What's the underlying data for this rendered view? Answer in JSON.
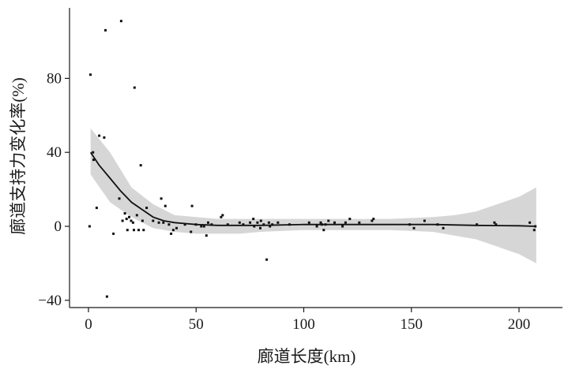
{
  "chart_data": {
    "type": "scatter",
    "xlabel": "廊道长度(km)",
    "ylabel": "廊道支持力变化率(%)",
    "xlim": [
      -8,
      212
    ],
    "ylim": [
      -45,
      120
    ],
    "x_ticks": [
      0,
      50,
      100,
      150,
      200
    ],
    "x_tick_labels": [
      "0",
      "50",
      "100",
      "150",
      "200"
    ],
    "y_ticks": [
      -40,
      0,
      40,
      80
    ],
    "y_tick_labels": [
      "−40",
      "0",
      "40",
      "80"
    ],
    "grid": false,
    "legend": "none",
    "points": [
      {
        "x": 0.5,
        "y": 0
      },
      {
        "x": 0.9,
        "y": 82
      },
      {
        "x": 2.1,
        "y": 40
      },
      {
        "x": 2.4,
        "y": 36
      },
      {
        "x": 3.8,
        "y": 10
      },
      {
        "x": 5,
        "y": 49
      },
      {
        "x": 7.3,
        "y": 48
      },
      {
        "x": 7.9,
        "y": 106
      },
      {
        "x": 8.6,
        "y": -38
      },
      {
        "x": 11.6,
        "y": -4
      },
      {
        "x": 14.3,
        "y": 15
      },
      {
        "x": 15.2,
        "y": 111
      },
      {
        "x": 15.8,
        "y": 3
      },
      {
        "x": 16.9,
        "y": 7
      },
      {
        "x": 17.7,
        "y": 4
      },
      {
        "x": 18.1,
        "y": -2
      },
      {
        "x": 18.9,
        "y": 5
      },
      {
        "x": 19.8,
        "y": 3
      },
      {
        "x": 20.7,
        "y": 2
      },
      {
        "x": 21.1,
        "y": -2
      },
      {
        "x": 21.4,
        "y": 75
      },
      {
        "x": 22.5,
        "y": 6
      },
      {
        "x": 23.3,
        "y": -2
      },
      {
        "x": 24.3,
        "y": 33
      },
      {
        "x": 25.1,
        "y": 3
      },
      {
        "x": 25.6,
        "y": -2
      },
      {
        "x": 27,
        "y": 10
      },
      {
        "x": 30,
        "y": 3
      },
      {
        "x": 32.7,
        "y": 2
      },
      {
        "x": 33.8,
        "y": 15
      },
      {
        "x": 34.8,
        "y": 2
      },
      {
        "x": 35.7,
        "y": 11
      },
      {
        "x": 37.4,
        "y": 1
      },
      {
        "x": 38.4,
        "y": -4
      },
      {
        "x": 39.4,
        "y": -2
      },
      {
        "x": 40.9,
        "y": -1
      },
      {
        "x": 44.8,
        "y": 1
      },
      {
        "x": 47.6,
        "y": -3
      },
      {
        "x": 48.1,
        "y": 11
      },
      {
        "x": 49.9,
        "y": 1
      },
      {
        "x": 52.4,
        "y": 0
      },
      {
        "x": 53.7,
        "y": 0
      },
      {
        "x": 54.8,
        "y": -5
      },
      {
        "x": 55.6,
        "y": 2
      },
      {
        "x": 57.2,
        "y": 1
      },
      {
        "x": 61.6,
        "y": 5
      },
      {
        "x": 62.3,
        "y": 6
      },
      {
        "x": 64.7,
        "y": 1
      },
      {
        "x": 70.2,
        "y": 2
      },
      {
        "x": 71.9,
        "y": 1
      },
      {
        "x": 75.1,
        "y": 2
      },
      {
        "x": 76.6,
        "y": 4
      },
      {
        "x": 77,
        "y": 0
      },
      {
        "x": 78.5,
        "y": 2
      },
      {
        "x": 79.8,
        "y": -1
      },
      {
        "x": 80.1,
        "y": 3
      },
      {
        "x": 81.4,
        "y": 1
      },
      {
        "x": 82.8,
        "y": -18
      },
      {
        "x": 83.8,
        "y": 2
      },
      {
        "x": 84.3,
        "y": 0
      },
      {
        "x": 85.4,
        "y": 1
      },
      {
        "x": 88,
        "y": 2
      },
      {
        "x": 93.4,
        "y": 1
      },
      {
        "x": 102.5,
        "y": 2
      },
      {
        "x": 106.1,
        "y": 0
      },
      {
        "x": 107.9,
        "y": 2
      },
      {
        "x": 108.4,
        "y": 1
      },
      {
        "x": 109.3,
        "y": -2
      },
      {
        "x": 110.1,
        "y": 1
      },
      {
        "x": 111.5,
        "y": 3
      },
      {
        "x": 114.3,
        "y": 2
      },
      {
        "x": 118,
        "y": 0
      },
      {
        "x": 119.4,
        "y": 2
      },
      {
        "x": 121.4,
        "y": 4
      },
      {
        "x": 125.8,
        "y": 2
      },
      {
        "x": 131.7,
        "y": 3
      },
      {
        "x": 132.4,
        "y": 4
      },
      {
        "x": 149.2,
        "y": 1
      },
      {
        "x": 151.2,
        "y": -1
      },
      {
        "x": 156.1,
        "y": 3
      },
      {
        "x": 162.2,
        "y": 1
      },
      {
        "x": 164.8,
        "y": -1
      },
      {
        "x": 180.4,
        "y": 1
      },
      {
        "x": 188.6,
        "y": 2
      },
      {
        "x": 189.3,
        "y": 1
      },
      {
        "x": 205,
        "y": 2
      },
      {
        "x": 207.1,
        "y": -2
      },
      {
        "x": 207.6,
        "y": 0
      }
    ],
    "trend_line": [
      {
        "x": 1,
        "y": 40
      },
      {
        "x": 5,
        "y": 33
      },
      {
        "x": 10,
        "y": 26
      },
      {
        "x": 15,
        "y": 19
      },
      {
        "x": 20,
        "y": 13
      },
      {
        "x": 25,
        "y": 9
      },
      {
        "x": 30,
        "y": 5
      },
      {
        "x": 35,
        "y": 3
      },
      {
        "x": 40,
        "y": 2
      },
      {
        "x": 45,
        "y": 1.5
      },
      {
        "x": 50,
        "y": 1
      },
      {
        "x": 60,
        "y": 0.5
      },
      {
        "x": 70,
        "y": 0.5
      },
      {
        "x": 80,
        "y": 0.5
      },
      {
        "x": 100,
        "y": 1
      },
      {
        "x": 120,
        "y": 1
      },
      {
        "x": 140,
        "y": 1
      },
      {
        "x": 160,
        "y": 1
      },
      {
        "x": 180,
        "y": 0.5
      },
      {
        "x": 200,
        "y": 0.3
      },
      {
        "x": 208,
        "y": 0
      }
    ],
    "confidence_band": {
      "upper": [
        {
          "x": 1,
          "y": 53
        },
        {
          "x": 10,
          "y": 40
        },
        {
          "x": 20,
          "y": 21
        },
        {
          "x": 30,
          "y": 12
        },
        {
          "x": 40,
          "y": 6
        },
        {
          "x": 50,
          "y": 5
        },
        {
          "x": 60,
          "y": 4
        },
        {
          "x": 70,
          "y": 4
        },
        {
          "x": 80,
          "y": 4
        },
        {
          "x": 100,
          "y": 4
        },
        {
          "x": 120,
          "y": 4
        },
        {
          "x": 140,
          "y": 4
        },
        {
          "x": 160,
          "y": 5
        },
        {
          "x": 170,
          "y": 6
        },
        {
          "x": 180,
          "y": 8
        },
        {
          "x": 190,
          "y": 12
        },
        {
          "x": 200,
          "y": 16
        },
        {
          "x": 208,
          "y": 21
        }
      ],
      "lower": [
        {
          "x": 1,
          "y": 28
        },
        {
          "x": 10,
          "y": 13
        },
        {
          "x": 20,
          "y": 5
        },
        {
          "x": 30,
          "y": -1
        },
        {
          "x": 40,
          "y": -3
        },
        {
          "x": 50,
          "y": -4
        },
        {
          "x": 60,
          "y": -4
        },
        {
          "x": 70,
          "y": -4
        },
        {
          "x": 80,
          "y": -3
        },
        {
          "x": 100,
          "y": -2
        },
        {
          "x": 120,
          "y": -2
        },
        {
          "x": 140,
          "y": -2
        },
        {
          "x": 160,
          "y": -3
        },
        {
          "x": 170,
          "y": -5
        },
        {
          "x": 180,
          "y": -7
        },
        {
          "x": 190,
          "y": -11
        },
        {
          "x": 200,
          "y": -15
        },
        {
          "x": 208,
          "y": -20
        }
      ]
    },
    "colors": {
      "points": "#111111",
      "line": "#111111",
      "band": "#d6d6d6",
      "axis": "#1a1a1a"
    }
  }
}
